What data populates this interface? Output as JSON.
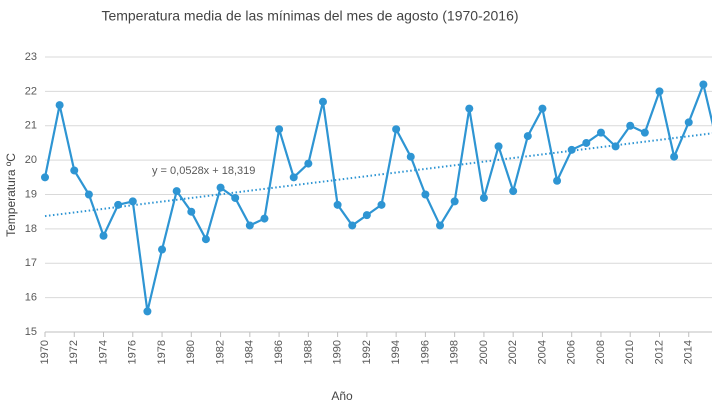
{
  "chart_data": {
    "type": "line",
    "title": "Temperatura media de las mínimas del mes de agosto (1970-2016)",
    "x_label": "Año",
    "y_label": "Temperatura ºC",
    "x": [
      1970,
      1971,
      1972,
      1973,
      1974,
      1975,
      1976,
      1977,
      1978,
      1979,
      1980,
      1981,
      1982,
      1983,
      1984,
      1985,
      1986,
      1987,
      1988,
      1989,
      1990,
      1991,
      1992,
      1993,
      1994,
      1995,
      1996,
      1997,
      1998,
      1999,
      2000,
      2001,
      2002,
      2003,
      2004,
      2005,
      2006,
      2007,
      2008,
      2009,
      2010,
      2011,
      2012,
      2013,
      2014,
      2015,
      2016
    ],
    "series": [
      {
        "name": "Temperatura",
        "color": "#2e95d3",
        "values": [
          19.5,
          21.6,
          19.7,
          19.0,
          17.8,
          18.7,
          18.8,
          15.6,
          17.4,
          19.1,
          18.5,
          17.7,
          19.2,
          18.9,
          18.1,
          18.3,
          20.9,
          19.5,
          19.9,
          21.7,
          18.7,
          18.1,
          18.4,
          18.7,
          20.9,
          20.1,
          19.0,
          18.1,
          18.8,
          21.5,
          18.9,
          20.4,
          19.1,
          20.7,
          21.5,
          19.4,
          20.3,
          20.5,
          20.8,
          20.4,
          21.0,
          20.8,
          22.0,
          20.1,
          21.1,
          22.2,
          20.4
        ]
      }
    ],
    "trendline": {
      "label": "y = 0,0528x + 18,319",
      "slope": 0.0528,
      "intercept": 18.319
    },
    "xlim": [
      1970,
      2016
    ],
    "xticks": [
      1970,
      1972,
      1974,
      1976,
      1978,
      1980,
      1982,
      1984,
      1986,
      1988,
      1990,
      1992,
      1994,
      1996,
      1998,
      2000,
      2002,
      2004,
      2006,
      2008,
      2010,
      2012,
      2014
    ],
    "ylim": [
      15,
      23
    ],
    "yticks": [
      15,
      16,
      17,
      18,
      19,
      20,
      21,
      22,
      23
    ],
    "grid": true
  }
}
